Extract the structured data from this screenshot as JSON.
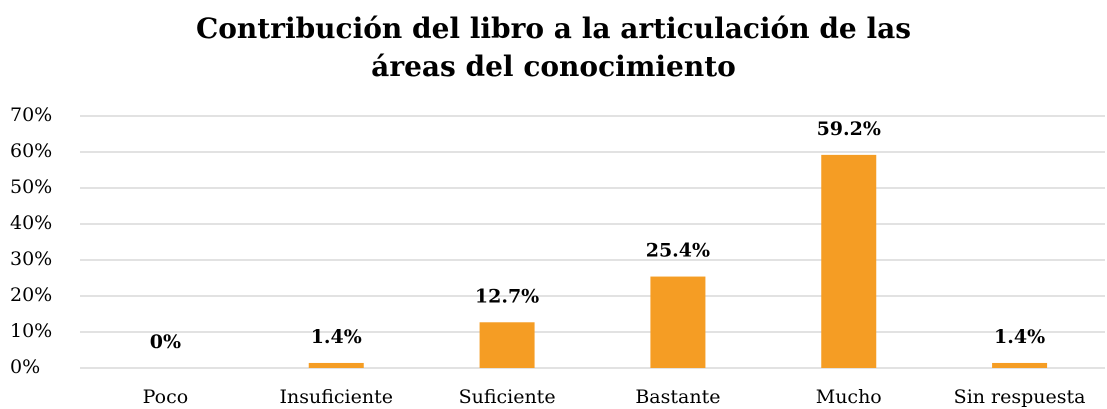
{
  "chart_data": {
    "type": "bar",
    "title": "Contribución del libro a la articulación de las áreas del conocimiento",
    "categories": [
      "Poco",
      "Insuficiente",
      "Suficiente",
      "Bastante",
      "Mucho",
      "Sin respuesta"
    ],
    "values": [
      0,
      1.4,
      12.7,
      25.4,
      59.2,
      1.4
    ],
    "value_labels": [
      "0%",
      "1.4%",
      "12.7%",
      "25.4%",
      "59.2%",
      "1.4%"
    ],
    "color": "#f59d24",
    "ylim": [
      0,
      70
    ],
    "yticks": [
      {
        "value": 0,
        "label": "0%"
      },
      {
        "value": 10,
        "label": "10%"
      },
      {
        "value": 20,
        "label": "20%"
      },
      {
        "value": 30,
        "label": "30%"
      },
      {
        "value": 40,
        "label": "40%"
      },
      {
        "value": 50,
        "label": "50%"
      },
      {
        "value": 60,
        "label": "60%"
      },
      {
        "value": 70,
        "label": "70%"
      }
    ],
    "grid": true
  }
}
